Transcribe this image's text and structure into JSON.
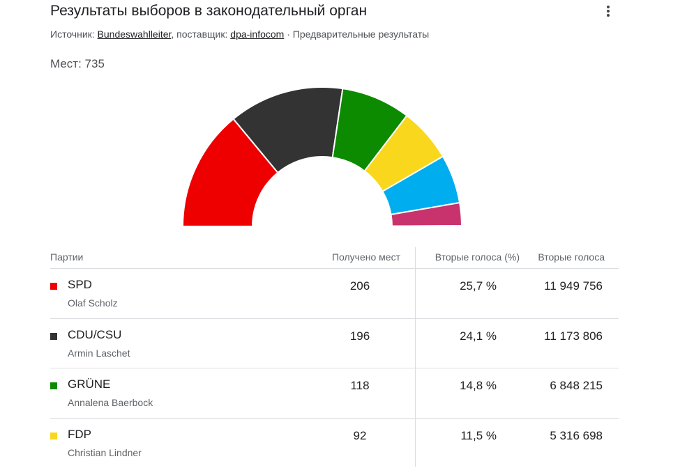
{
  "header": {
    "title": "Результаты выборов в законодательный орган",
    "source_prefix": "Источник:",
    "source_link": "Bundeswahlleiter",
    "provider_prefix": ", поставщик:",
    "provider_link": "dpa-infocom",
    "note": "· Предварительные результаты",
    "seats_label": "Мест: 735"
  },
  "chart_data": {
    "type": "half-donut",
    "values": [
      206,
      196,
      118,
      92,
      83,
      39,
      1
    ],
    "colors": [
      "#ee0000",
      "#333333",
      "#0c8a00",
      "#f9d71c",
      "#00aeef",
      "#c8336e",
      "#5a6f99"
    ]
  },
  "table": {
    "columns": [
      "Партии",
      "Получено мест",
      "Вторые голоса (%)",
      "Вторые голоса"
    ],
    "rows": [
      {
        "color": "#ee0000",
        "party": "SPD",
        "leader": "Olaf Scholz",
        "seats": 206,
        "share": "25,7 %",
        "votes": "11 949 756"
      },
      {
        "color": "#333333",
        "party": "CDU/CSU",
        "leader": "Armin Laschet",
        "seats": 196,
        "share": "24,1 %",
        "votes": "11 173 806"
      },
      {
        "color": "#0c8a00",
        "party": "GRÜNE",
        "leader": "Annalena Baerbock",
        "seats": 118,
        "share": "14,8 %",
        "votes": "6 848 215"
      },
      {
        "color": "#f9d71c",
        "party": "FDP",
        "leader": "Christian Lindner",
        "seats": 92,
        "share": "11,5 %",
        "votes": "5 316 698"
      }
    ]
  }
}
